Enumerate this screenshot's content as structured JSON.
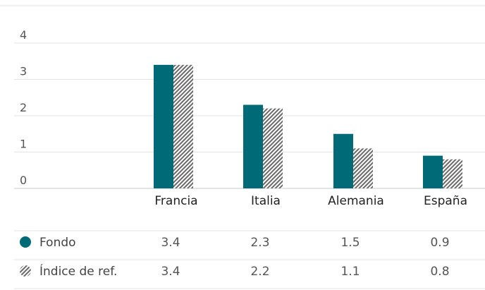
{
  "chart_data": {
    "type": "bar",
    "categories": [
      "Francia",
      "Italia",
      "Alemania",
      "España"
    ],
    "series": [
      {
        "name": "Fondo",
        "values": [
          3.4,
          2.3,
          1.5,
          0.9
        ],
        "color": "#006a77",
        "pattern": "solid"
      },
      {
        "name": "Índice de ref.",
        "values": [
          3.4,
          2.2,
          1.1,
          0.8
        ],
        "color": "#666666",
        "pattern": "hatched"
      }
    ],
    "yticks": [
      "0",
      "1",
      "2",
      "3",
      "4"
    ],
    "ylim": [
      0,
      4
    ],
    "grid": true,
    "legend": "table-below",
    "table": {
      "rows": [
        {
          "label": "Fondo",
          "values": [
            "3.4",
            "2.3",
            "1.5",
            "0.9"
          ]
        },
        {
          "label": "Índice de ref.",
          "values": [
            "3.4",
            "2.2",
            "1.1",
            "0.8"
          ]
        }
      ]
    }
  }
}
